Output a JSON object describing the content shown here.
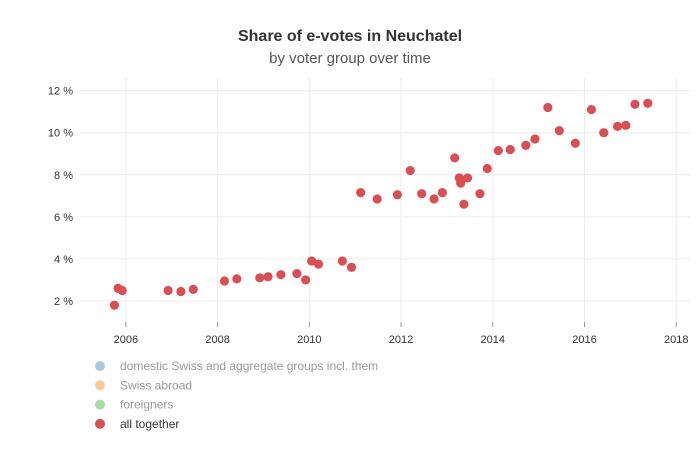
{
  "chart_data": {
    "type": "scatter",
    "title": "Share of e-votes in Neuchatel",
    "subtitle": "by voter group over time",
    "xlabel": "",
    "ylabel": "",
    "xlim": [
      2005.0,
      2018.3
    ],
    "ylim": [
      1.0,
      12.6
    ],
    "x_ticks": [
      2006,
      2008,
      2010,
      2012,
      2014,
      2016,
      2018
    ],
    "x_tick_labels": [
      "2006",
      "2008",
      "2010",
      "2012",
      "2014",
      "2016",
      "2018"
    ],
    "y_ticks": [
      2,
      4,
      6,
      8,
      10,
      12
    ],
    "y_tick_labels": [
      "2 %",
      "4 %",
      "6 %",
      "8 %",
      "10 %",
      "12 %"
    ],
    "grid": true,
    "legend_placement": "bottom-left",
    "legend": [
      {
        "name": "domestic Swiss and aggregate groups incl. them",
        "color": "#a6c8e0",
        "active": false
      },
      {
        "name": "Swiss abroad",
        "color": "#fdc897",
        "active": false
      },
      {
        "name": "foreigners",
        "color": "#a9dba4",
        "active": false
      },
      {
        "name": "all together",
        "color": "#d94f53",
        "active": true
      }
    ],
    "series": [
      {
        "name": "all together",
        "color": "#d94f53",
        "points": [
          [
            2005.75,
            1.8
          ],
          [
            2005.83,
            2.6
          ],
          [
            2005.92,
            2.5
          ],
          [
            2006.92,
            2.5
          ],
          [
            2007.2,
            2.45
          ],
          [
            2007.47,
            2.55
          ],
          [
            2008.15,
            2.95
          ],
          [
            2008.42,
            3.05
          ],
          [
            2008.92,
            3.1
          ],
          [
            2009.1,
            3.15
          ],
          [
            2009.38,
            3.25
          ],
          [
            2009.73,
            3.3
          ],
          [
            2009.92,
            3.0
          ],
          [
            2010.05,
            3.9
          ],
          [
            2010.2,
            3.75
          ],
          [
            2010.72,
            3.9
          ],
          [
            2010.92,
            3.6
          ],
          [
            2011.12,
            7.15
          ],
          [
            2011.48,
            6.85
          ],
          [
            2011.92,
            7.05
          ],
          [
            2012.2,
            8.2
          ],
          [
            2012.45,
            7.1
          ],
          [
            2012.72,
            6.85
          ],
          [
            2012.9,
            7.15
          ],
          [
            2013.17,
            8.8
          ],
          [
            2013.27,
            7.85
          ],
          [
            2013.3,
            7.6
          ],
          [
            2013.37,
            6.6
          ],
          [
            2013.45,
            7.85
          ],
          [
            2013.72,
            7.1
          ],
          [
            2013.88,
            8.3
          ],
          [
            2014.12,
            9.15
          ],
          [
            2014.38,
            9.2
          ],
          [
            2014.72,
            9.4
          ],
          [
            2014.92,
            9.7
          ],
          [
            2015.2,
            11.2
          ],
          [
            2015.45,
            10.1
          ],
          [
            2015.8,
            9.5
          ],
          [
            2016.15,
            11.1
          ],
          [
            2016.42,
            10.0
          ],
          [
            2016.72,
            10.3
          ],
          [
            2016.9,
            10.35
          ],
          [
            2017.1,
            11.35
          ],
          [
            2017.38,
            11.4
          ]
        ]
      }
    ]
  }
}
